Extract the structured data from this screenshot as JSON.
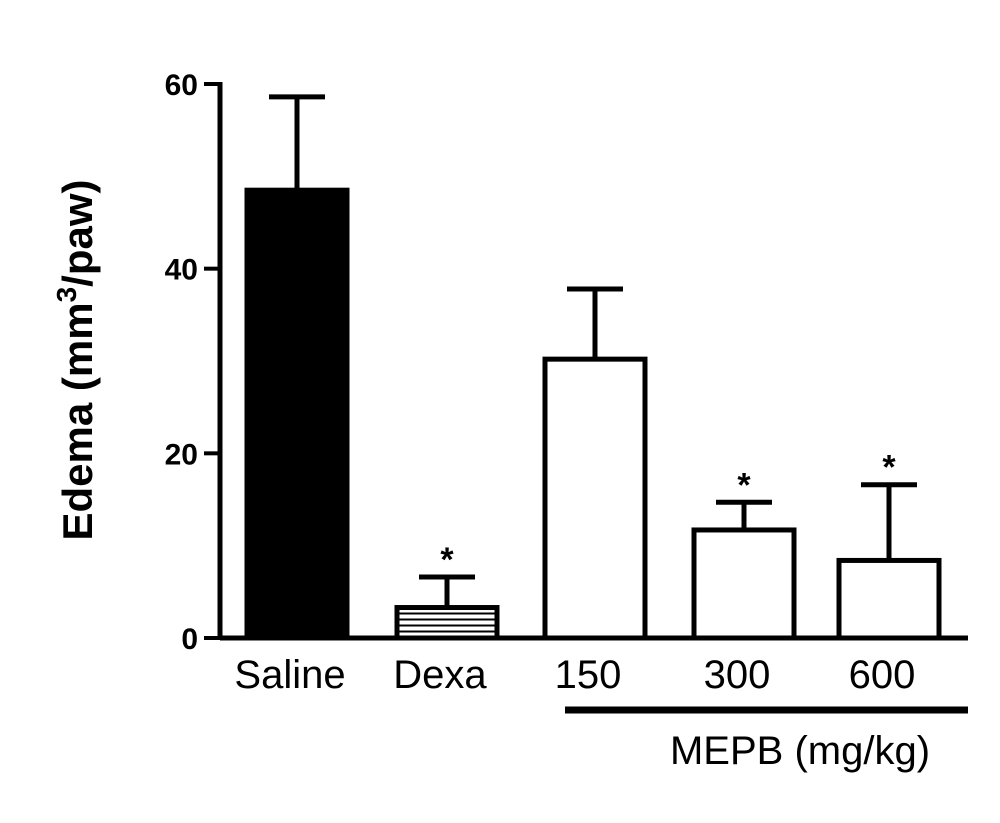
{
  "chart_data": {
    "type": "bar",
    "categories": [
      "Saline",
      "Dexa",
      "150",
      "300",
      "600"
    ],
    "values": [
      48.5,
      3.3,
      30.2,
      11.7,
      8.4
    ],
    "errors": [
      10.1,
      3.3,
      7.6,
      3.0,
      8.2
    ],
    "significance": [
      "",
      "*",
      "",
      "*",
      "*"
    ],
    "fills": [
      "solid",
      "striped",
      "open",
      "open",
      "open"
    ],
    "ylabel": "Edema (mm",
    "ylabel_superscript": "3",
    "ylabel_suffix": "/paw)",
    "xlabel": "",
    "group_label": "MEPB (mg/kg)",
    "group_categories": [
      "150",
      "300",
      "600"
    ],
    "ylim": [
      0,
      60
    ],
    "yticks": [
      "0",
      "20",
      "40",
      "60"
    ],
    "colors": {
      "bar_solid": "#000000",
      "bar_open": "#ffffff",
      "stroke": "#000000"
    }
  }
}
